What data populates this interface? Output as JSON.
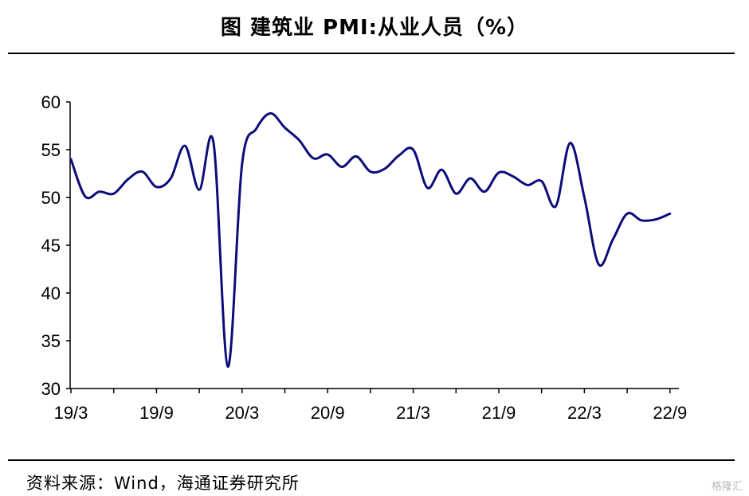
{
  "title": "图  建筑业 PMI:从业人员（%）",
  "source": "资料来源：Wind，海通证券研究所",
  "watermark": "格隆汇",
  "colors": {
    "line": "#0d0d7a",
    "axis": "#000000"
  },
  "chart_data": {
    "type": "line",
    "title": "图  建筑业 PMI:从业人员（%）",
    "xlabel": "",
    "ylabel": "",
    "ylim": [
      30,
      60
    ],
    "yticks": [
      "60",
      "55",
      "50",
      "45",
      "40",
      "35",
      "30"
    ],
    "xticks": [
      "19/3",
      "19/9",
      "20/3",
      "20/9",
      "21/3",
      "21/9",
      "22/3",
      "22/9"
    ],
    "grid": false,
    "legend": "none",
    "series": [
      {
        "name": "",
        "x": [
          "2019-03",
          "2019-04",
          "2019-05",
          "2019-06",
          "2019-07",
          "2019-08",
          "2019-09",
          "2019-10",
          "2019-11",
          "2019-12",
          "2020-01",
          "2020-02",
          "2020-03",
          "2020-04",
          "2020-05",
          "2020-06",
          "2020-07",
          "2020-08",
          "2020-09",
          "2020-10",
          "2020-11",
          "2020-12",
          "2021-01",
          "2021-02",
          "2021-03",
          "2021-04",
          "2021-05",
          "2021-06",
          "2021-07",
          "2021-08",
          "2021-09",
          "2021-10",
          "2021-11",
          "2021-12",
          "2022-01",
          "2022-02",
          "2022-03",
          "2022-04",
          "2022-05",
          "2022-06",
          "2022-07",
          "2022-08",
          "2022-09"
        ],
        "values": [
          54.0,
          50.1,
          50.6,
          50.4,
          51.9,
          52.7,
          51.1,
          52.0,
          55.4,
          50.8,
          55.7,
          32.3,
          53.5,
          57.2,
          58.8,
          57.3,
          56.0,
          54.1,
          54.5,
          53.2,
          54.3,
          52.7,
          53.0,
          54.4,
          55.0,
          51.0,
          52.9,
          50.4,
          52.0,
          50.6,
          52.6,
          52.2,
          51.3,
          51.7,
          49.1,
          55.7,
          50.0,
          43.0,
          45.6,
          48.3,
          47.6,
          47.7,
          48.3
        ]
      }
    ]
  }
}
